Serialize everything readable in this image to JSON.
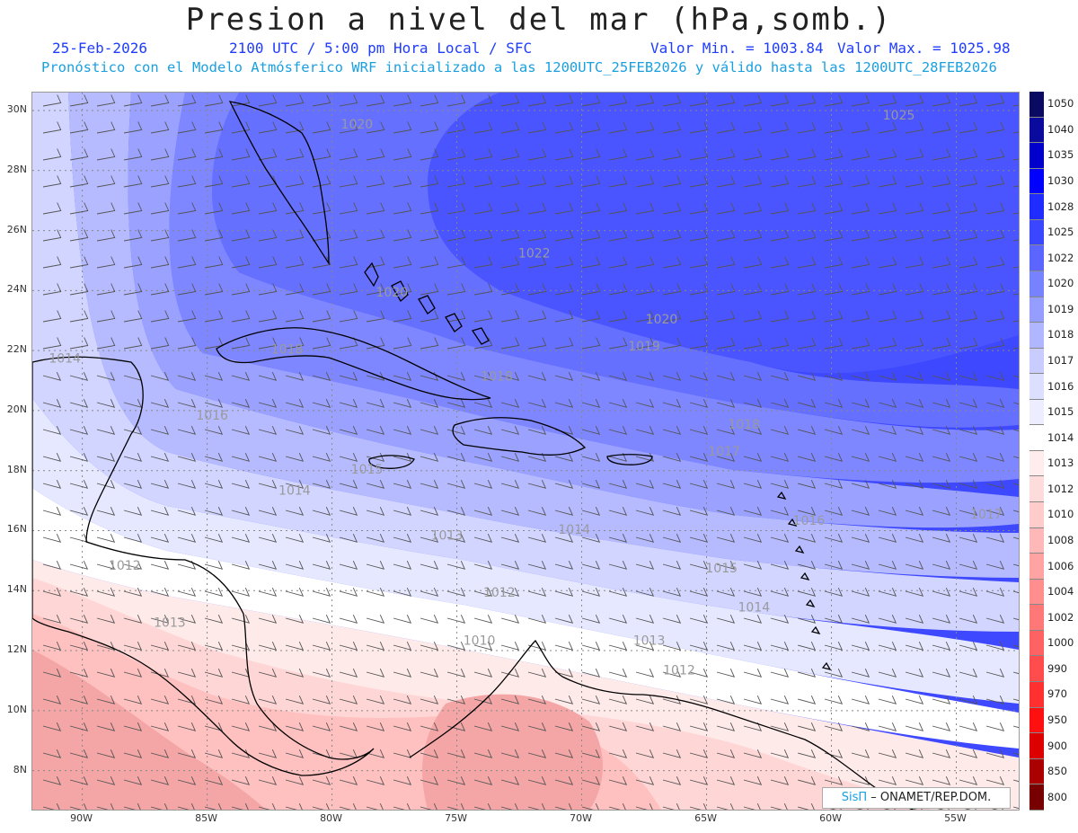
{
  "header": {
    "title": "Presion a nivel del mar (hPa,somb.)",
    "date": "25-Feb-2026",
    "time": "2100 UTC / 5:00 pm Hora Local / SFC",
    "min_label": "Valor Min. = 1003.84",
    "max_label": "Valor Max. = 1025.98",
    "forecast_note": "Pronóstico con el Modelo Atmósferico WRF inicializado a las 1200UTC_25FEB2026 y válido hasta las  1200UTC_28FEB2026"
  },
  "axes": {
    "lat_labels": [
      "30N",
      "28N",
      "26N",
      "24N",
      "22N",
      "20N",
      "18N",
      "16N",
      "14N",
      "12N",
      "10N",
      "8N"
    ],
    "lat_values": [
      30,
      28,
      26,
      24,
      22,
      20,
      18,
      16,
      14,
      12,
      10,
      8
    ],
    "lon_labels": [
      "90W",
      "85W",
      "80W",
      "75W",
      "70W",
      "65W",
      "60W",
      "55W"
    ],
    "lon_values": [
      -90,
      -85,
      -80,
      -75,
      -70,
      -65,
      -60,
      -55
    ],
    "lat_range": [
      6.7,
      30.6
    ],
    "lon_range": [
      -92,
      -52.5
    ]
  },
  "colorbar": {
    "labels": [
      "1050",
      "1040",
      "1035",
      "1030",
      "1028",
      "1025",
      "1022",
      "1020",
      "1019",
      "1018",
      "1017",
      "1016",
      "1015",
      "1014",
      "1013",
      "1012",
      "1010",
      "1008",
      "1006",
      "1004",
      "1002",
      "1000",
      "990",
      "970",
      "950",
      "900",
      "850",
      "800"
    ],
    "colors": [
      "#0a0a60",
      "#0a0a9c",
      "#0000cc",
      "#0000ff",
      "#1f2cff",
      "#3a47ff",
      "#5a66ff",
      "#7782ff",
      "#959dff",
      "#b0b6ff",
      "#c8ccff",
      "#dcdfff",
      "#eceeff",
      "#ffffff",
      "#ffecec",
      "#ffdcdc",
      "#ffcccc",
      "#ffb8b8",
      "#ffa3a3",
      "#ff8e8e",
      "#ff7878",
      "#ff6262",
      "#ff4c4c",
      "#ff3030",
      "#ff1010",
      "#dd0000",
      "#aa0000",
      "#770000"
    ]
  },
  "contour_labels": [
    {
      "text": "1020",
      "lat": 29.4,
      "lon": -79
    },
    {
      "text": "1025",
      "lat": 29.7,
      "lon": -57.3
    },
    {
      "text": "1022",
      "lat": 25.1,
      "lon": -71.9
    },
    {
      "text": "1020",
      "lat": 23.8,
      "lon": -77.6
    },
    {
      "text": "1020",
      "lat": 22.9,
      "lon": -66.8
    },
    {
      "text": "1019",
      "lat": 22,
      "lon": -67.5
    },
    {
      "text": "1018",
      "lat": 21.9,
      "lon": -81.8
    },
    {
      "text": "1014",
      "lat": 21.6,
      "lon": -90.7
    },
    {
      "text": "1018",
      "lat": 21,
      "lon": -73.4
    },
    {
      "text": "1016",
      "lat": 19.7,
      "lon": -84.8
    },
    {
      "text": "1018",
      "lat": 19.4,
      "lon": -63.5
    },
    {
      "text": "1017",
      "lat": 18.5,
      "lon": -64.3
    },
    {
      "text": "1015",
      "lat": 17.9,
      "lon": -78.6
    },
    {
      "text": "1014",
      "lat": 17.2,
      "lon": -81.5
    },
    {
      "text": "1016",
      "lat": 16.2,
      "lon": -60.9
    },
    {
      "text": "1017",
      "lat": 16.4,
      "lon": -53.8
    },
    {
      "text": "1014",
      "lat": 15.9,
      "lon": -70.3
    },
    {
      "text": "1013",
      "lat": 15.7,
      "lon": -75.4
    },
    {
      "text": "1012",
      "lat": 14.7,
      "lon": -88.3
    },
    {
      "text": "1015",
      "lat": 14.6,
      "lon": -64.4
    },
    {
      "text": "1012",
      "lat": 13.8,
      "lon": -73.3
    },
    {
      "text": "1014",
      "lat": 13.3,
      "lon": -63.1
    },
    {
      "text": "1013",
      "lat": 12.8,
      "lon": -86.5
    },
    {
      "text": "1010",
      "lat": 12.2,
      "lon": -74.1
    },
    {
      "text": "1013",
      "lat": 12.2,
      "lon": -67.3
    },
    {
      "text": "1012",
      "lat": 11.2,
      "lon": -66.1
    }
  ],
  "credit": {
    "brand": "SisΠ",
    "rest": " – ONAMET/REP.DOM."
  }
}
